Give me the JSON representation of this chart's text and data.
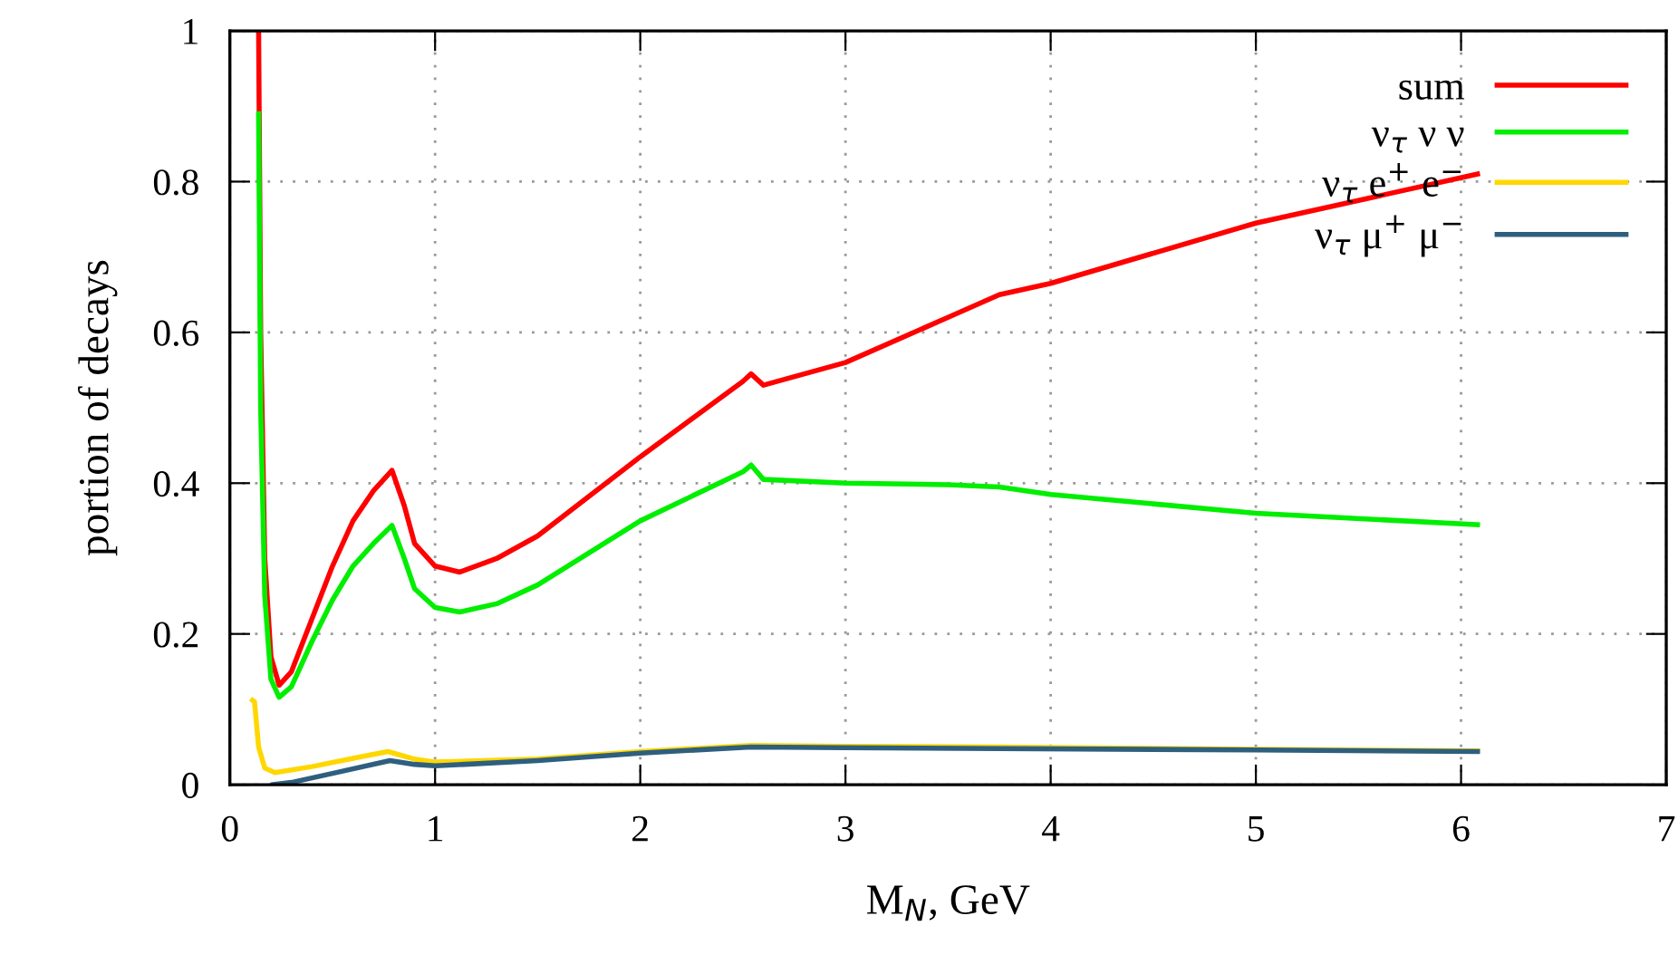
{
  "chart_data": {
    "type": "line",
    "xlabel": "M$_{N}$, GeV",
    "ylabel": "portion of decays",
    "xlim": [
      0,
      7
    ],
    "ylim": [
      0,
      1
    ],
    "xticks": [
      0,
      1,
      2,
      3,
      4,
      5,
      6,
      7
    ],
    "yticks": [
      0,
      0.2,
      0.4,
      0.6,
      0.8,
      1
    ],
    "grid": true,
    "legend": "top right",
    "marker": "none",
    "line_style": "solid",
    "series": [
      {
        "name": "sum",
        "color": "#ff0000",
        "x": [
          0.14,
          0.15,
          0.17,
          0.2,
          0.24,
          0.3,
          0.4,
          0.5,
          0.6,
          0.7,
          0.79,
          0.85,
          0.9,
          1.0,
          1.12,
          1.3,
          1.5,
          2.0,
          2.5,
          2.54,
          2.6,
          3.0,
          3.5,
          3.75,
          4.0,
          5.0,
          6.08
        ],
        "values": [
          1.0,
          0.6,
          0.3,
          0.17,
          0.132,
          0.15,
          0.22,
          0.29,
          0.35,
          0.39,
          0.417,
          0.37,
          0.32,
          0.29,
          0.282,
          0.3,
          0.33,
          0.435,
          0.535,
          0.545,
          0.53,
          0.56,
          0.62,
          0.65,
          0.665,
          0.745,
          0.81
        ]
      },
      {
        "name": "ν$_{τ}$ ν ν",
        "color": "#00ee00",
        "x": [
          0.14,
          0.15,
          0.17,
          0.2,
          0.24,
          0.3,
          0.4,
          0.5,
          0.6,
          0.7,
          0.79,
          0.85,
          0.9,
          1.0,
          1.12,
          1.3,
          1.5,
          2.0,
          2.5,
          2.54,
          2.6,
          3.0,
          3.5,
          3.75,
          4.0,
          5.0,
          6.08
        ],
        "values": [
          0.89,
          0.5,
          0.25,
          0.14,
          0.116,
          0.13,
          0.19,
          0.245,
          0.29,
          0.32,
          0.344,
          0.3,
          0.26,
          0.235,
          0.229,
          0.24,
          0.265,
          0.35,
          0.415,
          0.424,
          0.405,
          0.4,
          0.398,
          0.395,
          0.385,
          0.36,
          0.345
        ]
      },
      {
        "name": "ν$_{τ}$ e$^{+}$ e$^{−}$",
        "color": "#ffd700",
        "x": [
          0.11,
          0.12,
          0.14,
          0.17,
          0.22,
          0.4,
          0.6,
          0.77,
          0.9,
          1.0,
          1.5,
          2.0,
          2.54,
          3.0,
          3.75,
          5.0,
          6.08
        ],
        "values": [
          0.112,
          0.11,
          0.05,
          0.022,
          0.016,
          0.024,
          0.035,
          0.044,
          0.034,
          0.03,
          0.034,
          0.044,
          0.052,
          0.051,
          0.05,
          0.047,
          0.045
        ]
      },
      {
        "name": "ν$_{τ}$ μ$^{+}$ μ$^{−}$",
        "color": "#2f5f7f",
        "x": [
          0.21,
          0.3,
          0.5,
          0.78,
          0.9,
          1.0,
          1.5,
          2.0,
          2.54,
          3.0,
          3.75,
          5.0,
          6.08
        ],
        "values": [
          0.0,
          0.003,
          0.015,
          0.032,
          0.027,
          0.025,
          0.032,
          0.042,
          0.05,
          0.049,
          0.048,
          0.046,
          0.044
        ]
      }
    ]
  }
}
